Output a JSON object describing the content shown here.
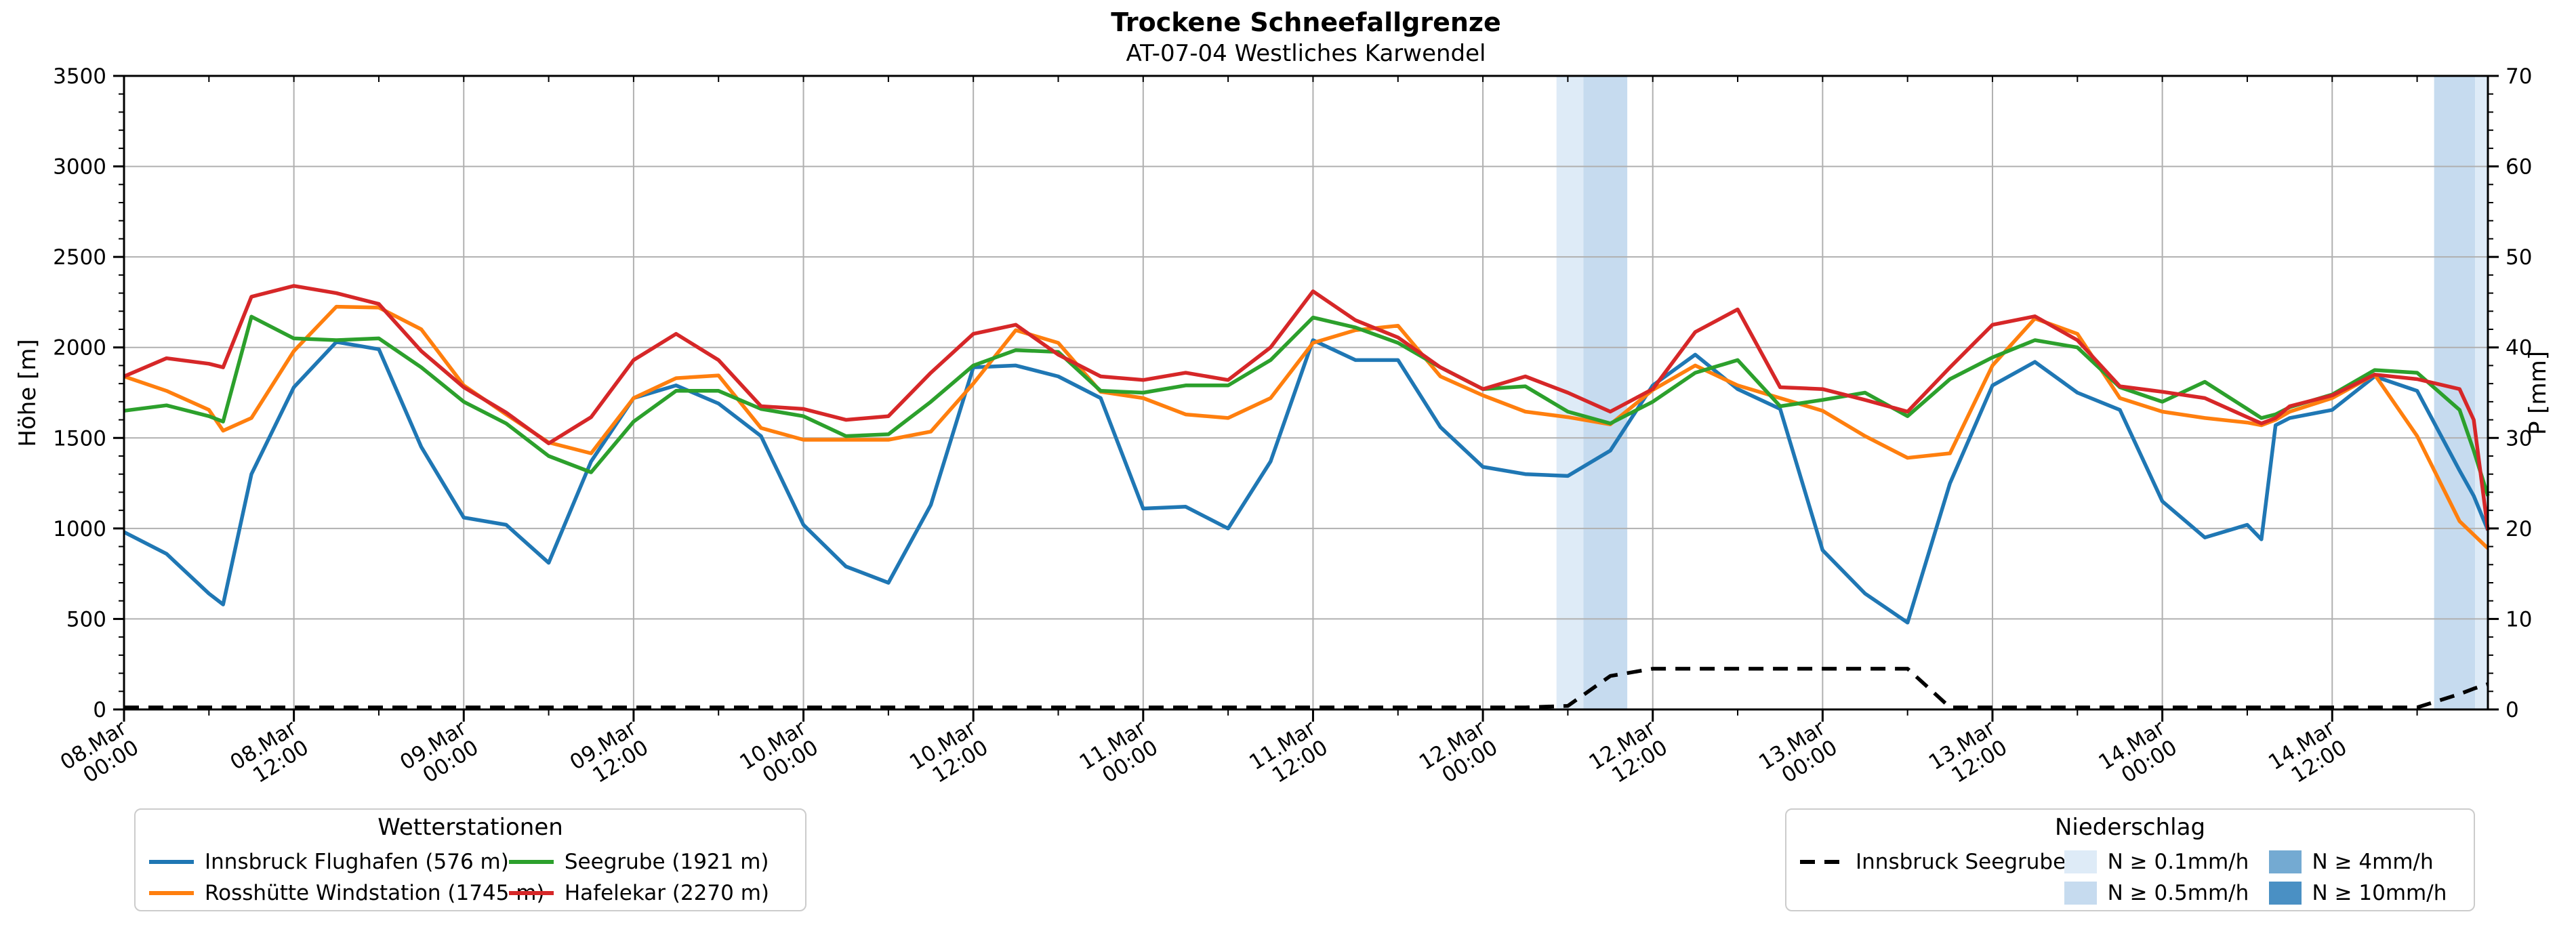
{
  "header": {
    "title": "Trockene Schneefallgrenze",
    "subtitle": "AT-07-04 Westliches Karwendel"
  },
  "chart_data": {
    "type": "line",
    "title": "Trockene Schneefallgrenze",
    "subtitle": "AT-07-04 Westliches Karwendel",
    "ylabel_left": "Höhe [m]",
    "ylabel_right": "P [mm]",
    "ylim_left": [
      0,
      3500
    ],
    "ylim_right": [
      0,
      70
    ],
    "grid": true,
    "x_unit": "hours since 08 Mar 00:00",
    "x_range_h": [
      0,
      167
    ],
    "x_major_tick_every_h": 12,
    "x_minor_tick_every_h": 6,
    "y_left_ticks": [
      0,
      500,
      1000,
      1500,
      2000,
      2500,
      3000,
      3500
    ],
    "y_right_ticks": [
      0,
      10,
      20,
      30,
      40,
      50,
      60,
      70
    ],
    "x_tick_labels": [
      {
        "h": 0,
        "date": "08.Mar",
        "time": "00:00"
      },
      {
        "h": 12,
        "date": "08.Mar",
        "time": "12:00"
      },
      {
        "h": 24,
        "date": "09.Mar",
        "time": "00:00"
      },
      {
        "h": 36,
        "date": "09.Mar",
        "time": "12:00"
      },
      {
        "h": 48,
        "date": "10.Mar",
        "time": "00:00"
      },
      {
        "h": 60,
        "date": "10.Mar",
        "time": "12:00"
      },
      {
        "h": 72,
        "date": "11.Mar",
        "time": "00:00"
      },
      {
        "h": 84,
        "date": "11.Mar",
        "time": "12:00"
      },
      {
        "h": 96,
        "date": "12.Mar",
        "time": "00:00"
      },
      {
        "h": 108,
        "date": "12.Mar",
        "time": "12:00"
      },
      {
        "h": 120,
        "date": "13.Mar",
        "time": "00:00"
      },
      {
        "h": 132,
        "date": "13.Mar",
        "time": "12:00"
      },
      {
        "h": 144,
        "date": "14.Mar",
        "time": "00:00"
      },
      {
        "h": 156,
        "date": "14.Mar",
        "time": "12:00"
      }
    ],
    "x_hours": [
      0,
      3,
      6,
      7,
      9,
      12,
      15,
      18,
      21,
      24,
      27,
      30,
      33,
      36,
      39,
      42,
      45,
      48,
      51,
      54,
      57,
      60,
      63,
      66,
      69,
      72,
      75,
      78,
      81,
      84,
      87,
      90,
      93,
      96,
      99,
      102,
      105,
      108,
      111,
      114,
      117,
      120,
      123,
      126,
      129,
      132,
      135,
      138,
      141,
      144,
      147,
      150,
      151,
      152,
      153,
      156,
      159,
      162,
      165,
      166,
      167
    ],
    "series": [
      {
        "name": "Innsbruck Flughafen (576 m)",
        "color": "#1f77b4",
        "style": "solid",
        "axis": "left",
        "values": [
          980,
          860,
          640,
          580,
          1300,
          1780,
          2030,
          1990,
          1450,
          1060,
          1020,
          810,
          1370,
          1720,
          1790,
          1690,
          1510,
          1020,
          790,
          700,
          1130,
          1890,
          1900,
          1840,
          1720,
          1110,
          1120,
          1000,
          1370,
          2040,
          1930,
          1930,
          1560,
          1340,
          1300,
          1290,
          1430,
          1790,
          1960,
          1770,
          1660,
          880,
          640,
          480,
          1250,
          1790,
          1920,
          1750,
          1655,
          1150,
          950,
          1020,
          940,
          1570,
          1610,
          1655,
          1840,
          1760,
          1320,
          1180,
          990
        ]
      },
      {
        "name": "Rosshütte Windstation (1745 m)",
        "color": "#ff7f0e",
        "style": "solid",
        "axis": "left",
        "values": [
          1840,
          1760,
          1655,
          1540,
          1610,
          1980,
          2225,
          2220,
          2100,
          1790,
          1630,
          1475,
          1415,
          1720,
          1830,
          1845,
          1555,
          1490,
          1490,
          1490,
          1535,
          1800,
          2095,
          2025,
          1755,
          1720,
          1630,
          1610,
          1720,
          2025,
          2095,
          2120,
          1840,
          1735,
          1645,
          1615,
          1575,
          1765,
          1900,
          1790,
          1720,
          1650,
          1510,
          1390,
          1415,
          1900,
          2160,
          2075,
          1720,
          1645,
          1610,
          1585,
          1570,
          1600,
          1645,
          1720,
          1850,
          1510,
          1040,
          965,
          890
        ]
      },
      {
        "name": "Seegrube (1921 m)",
        "color": "#2ca02c",
        "style": "solid",
        "axis": "left",
        "values": [
          1650,
          1680,
          1620,
          1590,
          2170,
          2050,
          2040,
          2050,
          1890,
          1700,
          1580,
          1400,
          1310,
          1590,
          1760,
          1760,
          1660,
          1620,
          1510,
          1520,
          1700,
          1900,
          1985,
          1975,
          1760,
          1750,
          1790,
          1790,
          1930,
          2165,
          2110,
          2025,
          1890,
          1770,
          1785,
          1645,
          1580,
          1700,
          1860,
          1930,
          1675,
          1710,
          1750,
          1620,
          1825,
          1945,
          2040,
          2000,
          1780,
          1700,
          1810,
          1660,
          1610,
          1630,
          1670,
          1740,
          1875,
          1860,
          1655,
          1430,
          1180
        ]
      },
      {
        "name": "Hafelekar (2270 m)",
        "color": "#d62728",
        "style": "solid",
        "axis": "left",
        "values": [
          1840,
          1940,
          1910,
          1890,
          2280,
          2340,
          2300,
          2240,
          1980,
          1780,
          1640,
          1470,
          1615,
          1930,
          2075,
          1930,
          1675,
          1660,
          1600,
          1620,
          1860,
          2075,
          2125,
          1960,
          1840,
          1820,
          1860,
          1820,
          2000,
          2310,
          2150,
          2055,
          1890,
          1770,
          1840,
          1750,
          1645,
          1770,
          2085,
          2210,
          1780,
          1770,
          1710,
          1645,
          1890,
          2125,
          2172,
          2040,
          1785,
          1755,
          1720,
          1615,
          1580,
          1610,
          1675,
          1735,
          1850,
          1825,
          1770,
          1600,
          990
        ]
      },
      {
        "name": "Innsbruck Seegrube",
        "color": "#000000",
        "style": "dashed",
        "axis": "right",
        "values": [
          0,
          0,
          0,
          0,
          0,
          0,
          0,
          0,
          0,
          0,
          0,
          0,
          0,
          0,
          0,
          0,
          0,
          0,
          0,
          0,
          0,
          0,
          0,
          0,
          0,
          0,
          0,
          0,
          0,
          0,
          0,
          0,
          0,
          0,
          0,
          0.4,
          3.7,
          4.5,
          4.5,
          4.5,
          4.5,
          4.5,
          4.5,
          4.5,
          0,
          0,
          0,
          0,
          0,
          0,
          0,
          0,
          0,
          0,
          0,
          0,
          0,
          0,
          1.7,
          2.3,
          2.8
        ]
      }
    ],
    "precip_bands": [
      {
        "start_h": 101.2,
        "end_h": 103.1,
        "level": "N ≥ 0.1mm/h"
      },
      {
        "start_h": 103.1,
        "end_h": 106.2,
        "level": "N ≥ 0.5mm/h"
      },
      {
        "start_h": 163.2,
        "end_h": 166.1,
        "level": "N ≥ 0.5mm/h"
      },
      {
        "start_h": 166.1,
        "end_h": 167.0,
        "level": "N ≥ 0.1mm/h"
      }
    ]
  },
  "legend_stations": {
    "title": "Wetterstationen",
    "items": [
      "Innsbruck Flughafen (576 m)",
      "Rosshütte Windstation (1745 m)",
      "Seegrube (1921 m)",
      "Hafelekar (2270 m)"
    ]
  },
  "legend_precip": {
    "title": "Niederschlag",
    "line_item": "Innsbruck Seegrube",
    "levels": [
      {
        "label": "N ≥ 0.1mm/h",
        "color": "#deebf7"
      },
      {
        "label": "N ≥ 0.5mm/h",
        "color": "#c6dbef"
      },
      {
        "label": "N ≥ 4mm/h",
        "color": "#74aad2"
      },
      {
        "label": "N ≥ 10mm/h",
        "color": "#4a90c4"
      }
    ]
  },
  "colors": {
    "grid": "#b0b0b0",
    "spine": "#000000",
    "background": "#ffffff"
  }
}
